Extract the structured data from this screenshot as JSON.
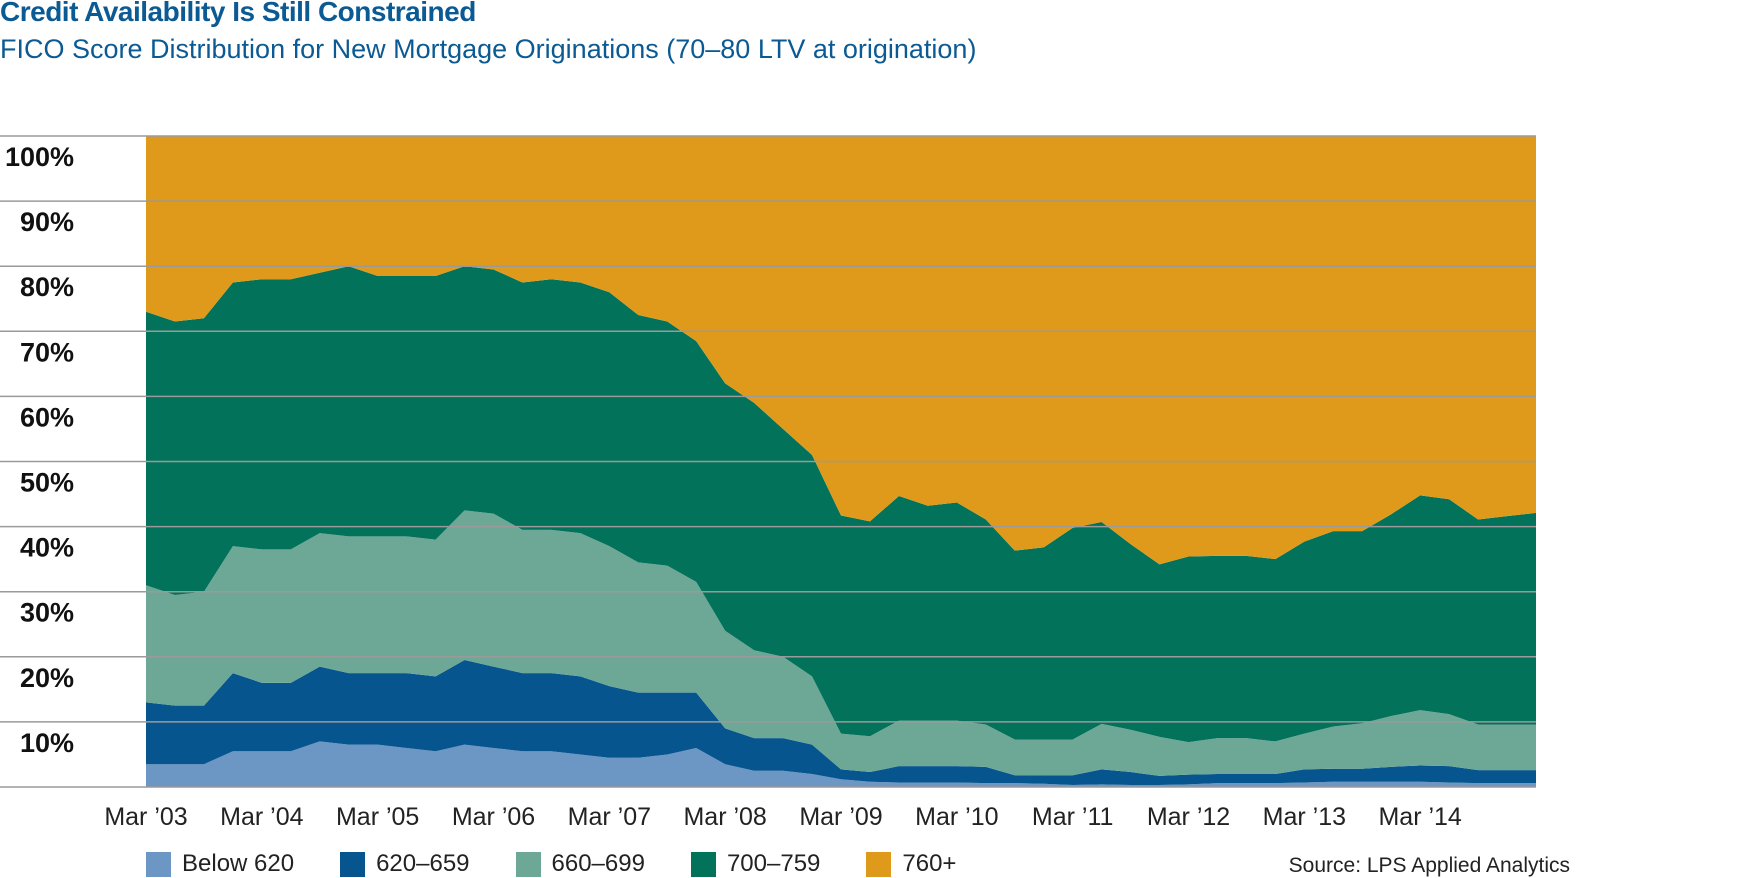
{
  "title": "Credit Availability Is Still Constrained",
  "subtitle": "FICO Score Distribution for New Mortgage Originations (70–80 LTV at origination)",
  "source": "Source: LPS Applied Analytics",
  "chart_data": {
    "type": "area",
    "stacked": true,
    "ylim": [
      0,
      100
    ],
    "yticks": [
      "10%",
      "20%",
      "30%",
      "40%",
      "50%",
      "60%",
      "70%",
      "80%",
      "90%",
      "100%"
    ],
    "xticks": [
      "Mar ’03",
      "Mar ’04",
      "Mar ’05",
      "Mar ’06",
      "Mar ’07",
      "Mar ’08",
      "Mar ’09",
      "Mar ’10",
      "Mar ’11",
      "Mar ’12",
      "Mar ’13",
      "Mar ’14"
    ],
    "grid": true,
    "legend": "bottom",
    "series": [
      {
        "name": "Below 620",
        "color": "#6c96c3",
        "values": [
          3.5,
          3.5,
          3.5,
          5.5,
          5.5,
          5.5,
          7,
          6.5,
          6.5,
          6,
          5.5,
          6.5,
          6,
          5.5,
          5.5,
          5,
          4.5,
          4.5,
          5,
          6,
          3.5,
          2.5,
          2.5,
          2,
          1.2,
          0.8,
          0.7,
          0.7,
          0.7,
          0.6,
          0.6,
          0.5,
          0.3,
          0.4,
          0.3,
          0.3,
          0.4,
          0.6,
          0.6,
          0.6,
          0.7,
          0.8,
          0.8,
          0.8,
          0.8,
          0.7,
          0.6,
          0.6,
          0.6
        ]
      },
      {
        "name": "620–659",
        "color": "#07558e",
        "values": [
          9.5,
          9,
          9,
          12,
          10.5,
          10.5,
          11.5,
          11,
          11,
          11.5,
          11.5,
          13,
          12.5,
          12,
          12,
          12,
          11,
          10,
          9.5,
          8.5,
          5.5,
          5,
          5,
          4.5,
          1.5,
          1.5,
          2.5,
          2.5,
          2.5,
          2.5,
          1.2,
          1.3,
          1.5,
          2.3,
          2,
          1.4,
          1.5,
          1.4,
          1.4,
          1.4,
          2,
          2,
          2,
          2.3,
          2.5,
          2.5,
          2,
          2,
          2
        ]
      },
      {
        "name": "660–699",
        "color": "#6da897",
        "values": [
          18,
          17,
          17.5,
          19.5,
          20.5,
          20.5,
          20.5,
          21,
          21,
          21,
          21,
          23,
          23.5,
          22,
          22,
          22,
          21.5,
          20,
          19.5,
          17,
          15,
          13.5,
          12.5,
          10.5,
          5.5,
          5.5,
          7,
          7,
          7,
          6.5,
          5.5,
          5.5,
          5.5,
          7,
          6.5,
          6,
          5,
          5.5,
          5.5,
          5,
          5.5,
          6.5,
          7,
          7.8,
          8.5,
          8,
          7,
          7,
          7
        ]
      },
      {
        "name": "700–759",
        "color": "#02725a",
        "values": [
          42,
          42,
          42,
          40.5,
          41.5,
          41.5,
          40,
          41.5,
          40,
          40,
          40.5,
          37.5,
          37.5,
          38,
          38.5,
          38.5,
          39,
          38,
          37.5,
          37,
          38,
          38,
          35,
          34,
          33.5,
          33,
          34.5,
          33,
          33.5,
          31.5,
          29,
          29.5,
          32.5,
          31,
          28.5,
          26.5,
          28.5,
          28,
          28,
          28,
          29.5,
          30,
          29.5,
          31,
          33,
          33,
          31.5,
          32,
          32.5
        ]
      },
      {
        "name": "760+",
        "color": "#e09a1b",
        "values": [
          27,
          28.5,
          28,
          22.5,
          22,
          22,
          21,
          20,
          21.5,
          21.5,
          21.5,
          21,
          20.5,
          22.5,
          22,
          22.5,
          24,
          27.5,
          28.5,
          31.5,
          38,
          41,
          45,
          49,
          58.3,
          59.2,
          55.3,
          56.8,
          56.3,
          58.9,
          63.7,
          63.2,
          60.2,
          59.3,
          62.7,
          65.8,
          64.6,
          64.5,
          64.5,
          65,
          62.3,
          60.7,
          60.7,
          58.1,
          55.2,
          55.8,
          58.9,
          58.4,
          57.9
        ]
      }
    ]
  }
}
